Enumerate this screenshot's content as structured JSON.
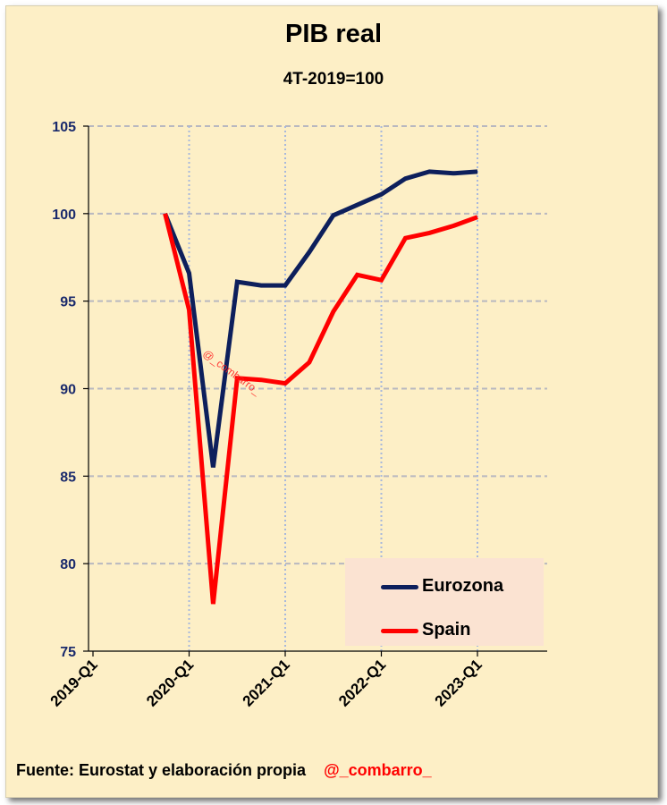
{
  "chart_data": {
    "type": "line",
    "title": "PIB real",
    "subtitle": "4T-2019=100",
    "x_tick_labels": [
      "2019-Q1",
      "2020-Q1",
      "2021-Q1",
      "2022-Q1",
      "2023-Q1"
    ],
    "x": [
      "2019-Q4",
      "2020-Q1",
      "2020-Q2",
      "2020-Q3",
      "2020-Q4",
      "2021-Q1",
      "2021-Q2",
      "2021-Q3",
      "2021-Q4",
      "2022-Q1",
      "2022-Q2",
      "2022-Q3",
      "2022-Q4",
      "2023-Q1",
      "2023-Q2"
    ],
    "ylim": [
      75,
      105
    ],
    "y_ticks": [
      75,
      80,
      85,
      90,
      95,
      100,
      105
    ],
    "grid": true,
    "legend_position": "bottom-right",
    "series": [
      {
        "name": "Eurozona",
        "color": "#0d1f5c",
        "values": [
          100.0,
          96.6,
          85.5,
          96.1,
          95.9,
          95.9,
          97.8,
          99.9,
          100.5,
          101.1,
          102.0,
          102.4,
          102.3,
          102.4,
          null
        ]
      },
      {
        "name": "Spain",
        "color": "#ff0000",
        "values": [
          100.0,
          94.5,
          77.7,
          90.6,
          90.5,
          90.3,
          91.5,
          94.4,
          96.5,
          96.2,
          98.6,
          98.9,
          99.3,
          99.8,
          null
        ]
      }
    ]
  },
  "watermark": "@_combarro_",
  "footer": {
    "source": "Fuente: Eurostat y elaboración propia",
    "handle": "@_combarro_"
  }
}
